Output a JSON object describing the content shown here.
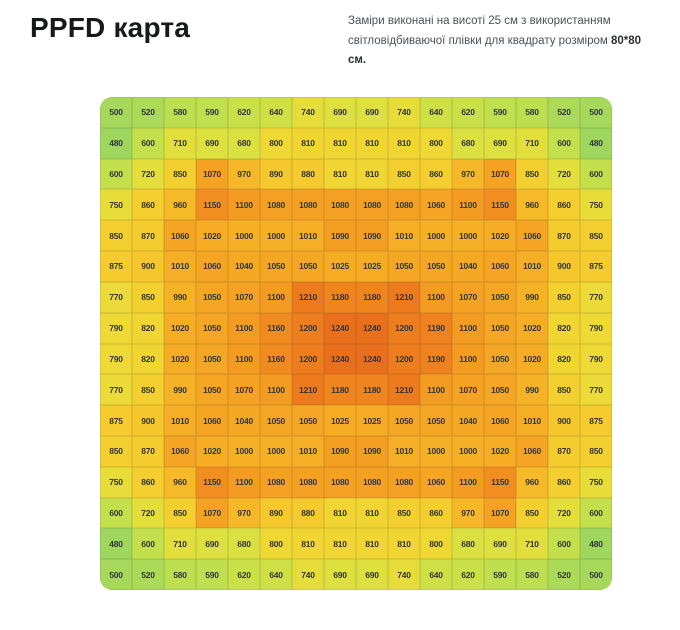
{
  "header": {
    "title": "PPFD карта",
    "description": "Заміри виконані на висоті 25 см з використанням світловідбиваючої плівки для квадрату розміром ",
    "description_bold": "80*80 см."
  },
  "chart_data": {
    "type": "heatmap",
    "title": "PPFD карта",
    "rows": 16,
    "cols": 16,
    "value_range": [
      480,
      1240
    ],
    "values": [
      [
        500,
        520,
        580,
        590,
        620,
        640,
        740,
        690,
        690,
        740,
        640,
        620,
        590,
        580,
        520,
        500
      ],
      [
        480,
        600,
        710,
        690,
        680,
        800,
        810,
        810,
        810,
        810,
        800,
        680,
        690,
        710,
        600,
        480
      ],
      [
        600,
        720,
        850,
        1070,
        970,
        890,
        880,
        810,
        810,
        850,
        860,
        970,
        1070,
        850,
        720,
        600
      ],
      [
        750,
        860,
        960,
        1150,
        1100,
        1080,
        1080,
        1080,
        1080,
        1080,
        1060,
        1100,
        1150,
        960,
        860,
        750
      ],
      [
        850,
        870,
        1060,
        1020,
        1000,
        1000,
        1010,
        1090,
        1090,
        1010,
        1000,
        1000,
        1020,
        1060,
        870,
        850
      ],
      [
        875,
        900,
        1010,
        1060,
        1040,
        1050,
        1050,
        1025,
        1025,
        1050,
        1050,
        1040,
        1060,
        1010,
        900,
        875
      ],
      [
        770,
        850,
        990,
        1050,
        1070,
        1100,
        1210,
        1180,
        1180,
        1210,
        1100,
        1070,
        1050,
        990,
        850,
        770
      ],
      [
        790,
        820,
        1020,
        1050,
        1100,
        1160,
        1200,
        1240,
        1240,
        1200,
        1190,
        1100,
        1050,
        1020,
        820,
        790
      ],
      [
        790,
        820,
        1020,
        1050,
        1100,
        1160,
        1200,
        1240,
        1240,
        1200,
        1190,
        1100,
        1050,
        1020,
        820,
        790
      ],
      [
        770,
        850,
        990,
        1050,
        1070,
        1100,
        1210,
        1180,
        1180,
        1210,
        1100,
        1070,
        1050,
        990,
        850,
        770
      ],
      [
        875,
        900,
        1010,
        1060,
        1040,
        1050,
        1050,
        1025,
        1025,
        1050,
        1050,
        1040,
        1060,
        1010,
        900,
        875
      ],
      [
        850,
        870,
        1060,
        1020,
        1000,
        1000,
        1010,
        1090,
        1090,
        1010,
        1000,
        1000,
        1020,
        1060,
        870,
        850
      ],
      [
        750,
        860,
        960,
        1150,
        1100,
        1080,
        1080,
        1080,
        1080,
        1080,
        1060,
        1100,
        1150,
        960,
        860,
        750
      ],
      [
        600,
        720,
        850,
        1070,
        970,
        890,
        880,
        810,
        810,
        850,
        860,
        970,
        1070,
        850,
        720,
        600
      ],
      [
        480,
        600,
        710,
        690,
        680,
        800,
        810,
        810,
        810,
        810,
        800,
        680,
        690,
        710,
        600,
        480
      ],
      [
        500,
        520,
        580,
        590,
        620,
        640,
        740,
        690,
        690,
        740,
        640,
        620,
        590,
        580,
        520,
        500
      ]
    ],
    "color_stops": [
      {
        "value": 480,
        "color": "#9fd65e"
      },
      {
        "value": 600,
        "color": "#c3e04c"
      },
      {
        "value": 700,
        "color": "#e0e03e"
      },
      {
        "value": 800,
        "color": "#f0d834"
      },
      {
        "value": 900,
        "color": "#f6c72c"
      },
      {
        "value": 1000,
        "color": "#f6b026"
      },
      {
        "value": 1100,
        "color": "#f49c22"
      },
      {
        "value": 1180,
        "color": "#f0851e"
      },
      {
        "value": 1240,
        "color": "#e96f1c"
      }
    ],
    "legend": "none",
    "grid": true
  }
}
